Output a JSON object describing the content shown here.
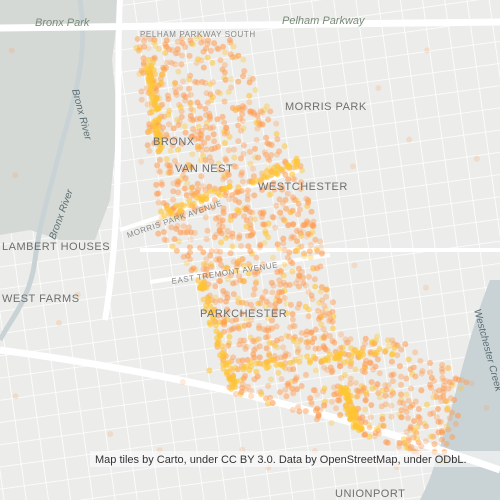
{
  "labels": {
    "bronx_park": "Bronx Park",
    "pelham_parkway": "Pelham Parkway",
    "pelham_parkway_south": "PELHAM PARKWAY SOUTH",
    "morris_park": "MORRIS PARK",
    "bronx": "BRONX",
    "van_nest": "VAN NEST",
    "westchester": "WESTCHESTER",
    "morris_park_avenue": "MORRIS PARK AVENUE",
    "lambert_houses": "LAMBERT HOUSES",
    "west_farms": "WEST FARMS",
    "east_tremont_avenue": "EAST TREMONT AVENUE",
    "parkchester": "PARKCHESTER",
    "bronx_river_1": "Bronx River",
    "bronx_river_2": "Bronx River",
    "westchester_creek": "Westchester Creek",
    "unionport": "UNIONPORT"
  },
  "attribution": "Map tiles by Carto, under CC BY 3.0. Data by OpenStreetMap, under ODbL."
}
